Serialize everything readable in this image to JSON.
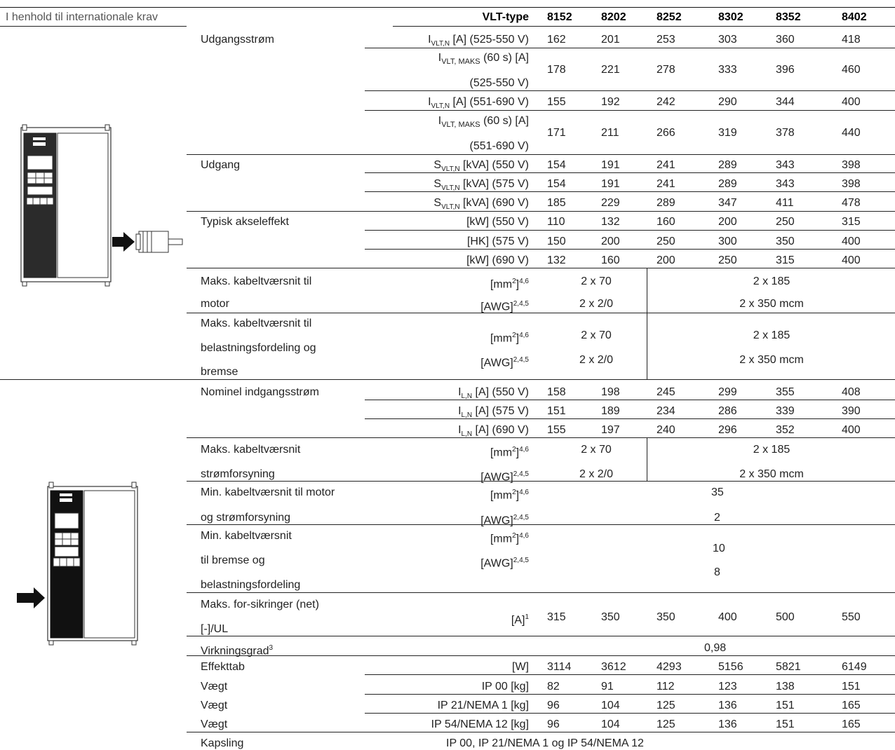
{
  "header": {
    "left": "I henhold til internationale krav",
    "type_label": "VLT-type",
    "models": [
      "8152",
      "8202",
      "8252",
      "8302",
      "8352",
      "8402"
    ]
  },
  "output": {
    "current_label": "Udgangsstrøm",
    "current_rows": [
      {
        "unit_main": "I",
        "unit_sub": "VLT,N",
        "unit_rest": " [A] (525-550 V)",
        "values": [
          "162",
          "201",
          "253",
          "303",
          "360",
          "418"
        ]
      },
      {
        "unit_main": "I",
        "unit_sub": "VLT, MAKS",
        "unit_rest": " (60 s) [A]",
        "unit_line2": "(525-550 V)",
        "values": [
          "178",
          "221",
          "278",
          "333",
          "396",
          "460"
        ]
      },
      {
        "unit_main": "I",
        "unit_sub": "VLT,N",
        "unit_rest": " [A] (551-690 V)",
        "values": [
          "155",
          "192",
          "242",
          "290",
          "344",
          "400"
        ]
      },
      {
        "unit_main": "I",
        "unit_sub": "VLT, MAKS",
        "unit_rest": " (60 s) [A]",
        "unit_line2": "(551-690 V)",
        "values": [
          "171",
          "211",
          "266",
          "319",
          "378",
          "440"
        ]
      }
    ],
    "power_label": "Udgang",
    "power_rows": [
      {
        "unit_main": "S",
        "unit_sub": "VLT,N",
        "unit_rest": " [kVA] (550 V)",
        "values": [
          "154",
          "191",
          "241",
          "289",
          "343",
          "398"
        ]
      },
      {
        "unit_main": "S",
        "unit_sub": "VLT,N",
        "unit_rest": " [kVA] (575 V)",
        "values": [
          "154",
          "191",
          "241",
          "289",
          "343",
          "398"
        ]
      },
      {
        "unit_main": "S",
        "unit_sub": "VLT,N",
        "unit_rest": " [kVA] (690 V)",
        "values": [
          "185",
          "229",
          "289",
          "347",
          "411",
          "478"
        ]
      }
    ],
    "shaft_label": "Typisk akseleffekt",
    "shaft_rows": [
      {
        "unit": "[kW] (550 V)",
        "values": [
          "110",
          "132",
          "160",
          "200",
          "250",
          "315"
        ]
      },
      {
        "unit": "[HK] (575 V)",
        "values": [
          "150",
          "200",
          "250",
          "300",
          "350",
          "400"
        ]
      },
      {
        "unit": "[kW] (690 V)",
        "values": [
          "132",
          "160",
          "200",
          "250",
          "315",
          "400"
        ]
      }
    ],
    "motor_cable": {
      "label_line1": "Maks.  kabeltværsnit til",
      "label_line2": "motor",
      "unit1_main": "[mm",
      "unit1_sup": "2",
      "unit1_close": "]",
      "unit1_sup2": "4,6",
      "unit2_main": "[AWG]",
      "unit2_sup": "2,4,5",
      "val1_a": "2 x 70",
      "val1_b": "2 x 185",
      "val2_a": "2 x 2/0",
      "val2_b": "2 x 350 mcm"
    },
    "load_cable": {
      "label_line1": "Maks.  kabeltværsnit til",
      "label_line2": "belastningsfordeling og",
      "label_line3": "bremse",
      "unit1_main": "[mm",
      "unit1_sup": "2",
      "unit1_close": "]",
      "unit1_sup2": "4,6",
      "unit2_main": "[AWG]",
      "unit2_sup": "2,4,5",
      "val1_a": "2 x 70",
      "val1_b": "2 x 185",
      "val2_a": "2 x 2/0",
      "val2_b": "2 x 350 mcm"
    }
  },
  "input": {
    "current_label": "Nominel indgangsstrøm",
    "current_rows": [
      {
        "unit_main": "I",
        "unit_sub": "L,N",
        "unit_rest": " [A] (550 V)",
        "values": [
          "158",
          "198",
          "245",
          "299",
          "355",
          "408"
        ]
      },
      {
        "unit_main": "I",
        "unit_sub": "L,N",
        "unit_rest": " [A] (575 V)",
        "values": [
          "151",
          "189",
          "234",
          "286",
          "339",
          "390"
        ]
      },
      {
        "unit_main": "I",
        "unit_sub": "L,N",
        "unit_rest": " [A] (690 V)",
        "values": [
          "155",
          "197",
          "240",
          "296",
          "352",
          "400"
        ]
      }
    ],
    "supply_cable": {
      "label_line1": "Maks.  kabeltværsnit",
      "label_line2": "strømforsyning",
      "unit1_main": "[mm",
      "unit1_sup": "2",
      "unit1_close": "]",
      "unit1_sup2": "4,6",
      "unit2_main": "[AWG]",
      "unit2_sup": "2,4,5",
      "val1_a": "2 x 70",
      "val1_b": "2 x 185",
      "val2_a": "2 x 2/0",
      "val2_b": "2 x 350 mcm"
    },
    "min_motor_cable": {
      "label_line1": "Min. kabeltværsnit til motor",
      "label_line2": "og strømforsyning",
      "unit1_main": "[mm",
      "unit1_sup": "2",
      "unit1_close": "]",
      "unit1_sup2": "4,6",
      "unit2_main": "[AWG]",
      "unit2_sup": "2,4,5",
      "val1": "35",
      "val2": "2"
    },
    "min_brake_cable": {
      "label_line1": "Min.   kabeltværsnit",
      "label_line2": "til  bremse  og",
      "label_line3": "belastningsfordeling",
      "unit1_main": "[mm",
      "unit1_sup": "2",
      "unit1_close": "]",
      "unit1_sup2": "4,6",
      "unit2_main": "[AWG]",
      "unit2_sup": "2,4,5",
      "val1": "10",
      "val2": "8"
    },
    "fuses": {
      "label_line1": "Maks.  for-sikringer (net)",
      "label_line2": "[-]/UL",
      "unit_main": "[A]",
      "unit_sup": "1",
      "values": [
        "315",
        "350",
        "350",
        "400",
        "500",
        "550"
      ]
    }
  },
  "general": {
    "efficiency_label": "Virkningsgrad",
    "efficiency_sup": "3",
    "efficiency_value": "0,98",
    "loss_label": "Effekttab",
    "loss_unit": "[W]",
    "loss_values": [
      "3114",
      "3612",
      "4293",
      "5156",
      "5821",
      "6149"
    ],
    "weights": [
      {
        "label": "Vægt",
        "unit": "IP 00 [kg]",
        "values": [
          "82",
          "91",
          "112",
          "123",
          "138",
          "151"
        ]
      },
      {
        "label": "Vægt",
        "unit": "IP 21/NEMA 1 [kg]",
        "values": [
          "96",
          "104",
          "125",
          "136",
          "151",
          "165"
        ]
      },
      {
        "label": "Vægt",
        "unit": "IP 54/NEMA 12 [kg]",
        "values": [
          "96",
          "104",
          "125",
          "136",
          "151",
          "165"
        ]
      }
    ],
    "enclosure_label": "Kapsling",
    "enclosure_value": "IP 00, IP 21/NEMA 1 og IP 54/NEMA 12"
  }
}
